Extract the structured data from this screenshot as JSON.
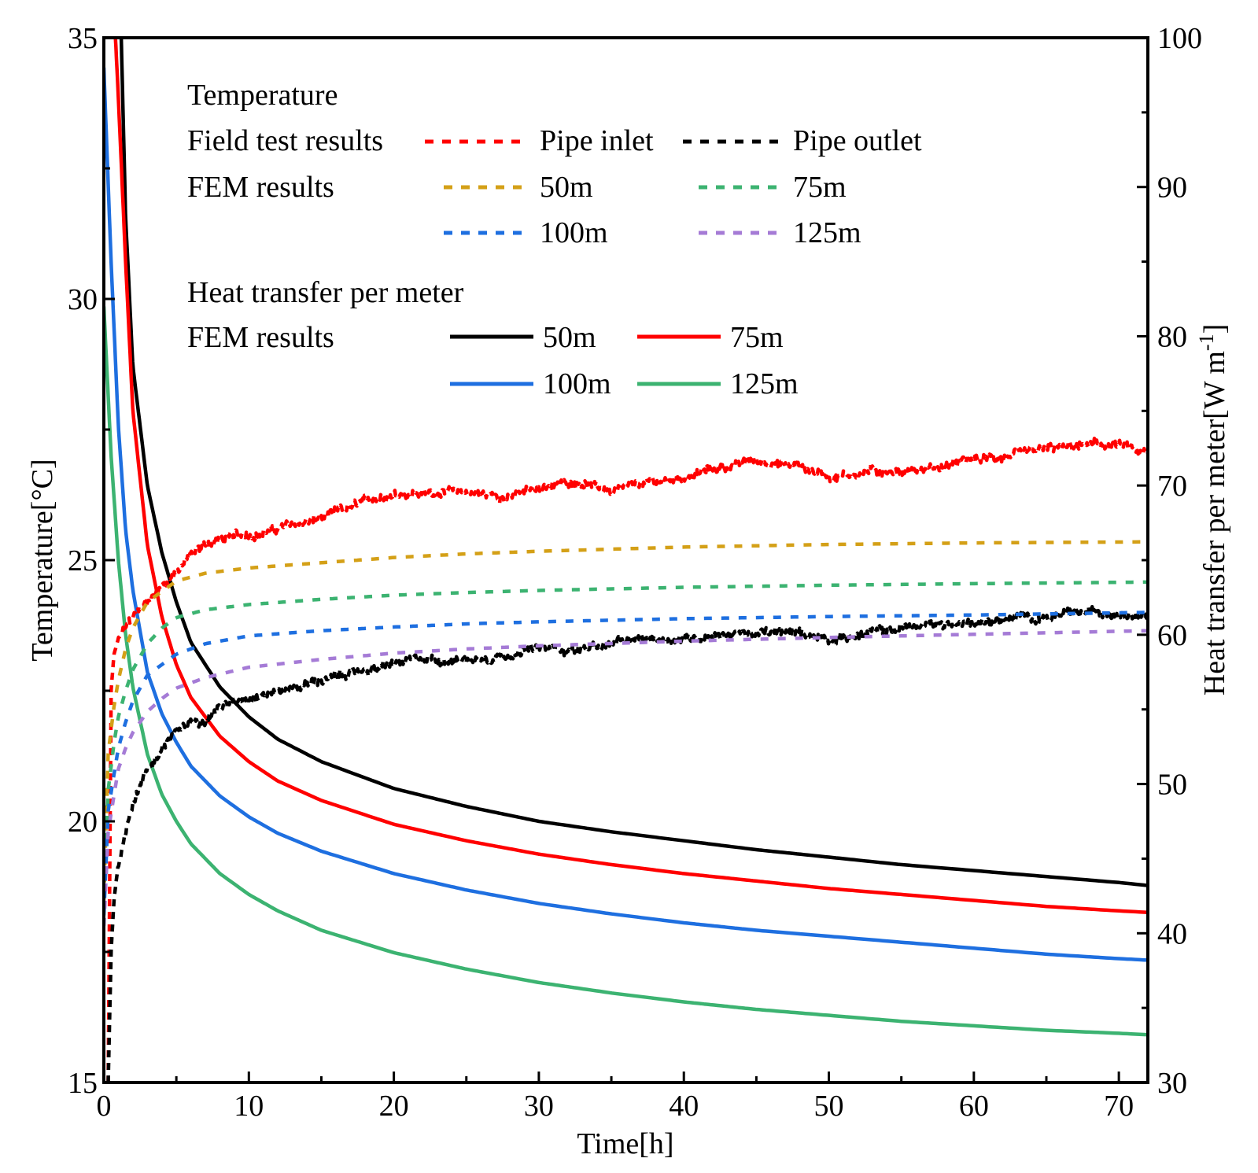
{
  "chart_data": {
    "type": "line",
    "xlabel": "Time[h]",
    "ylabel_left": "Temperature[°C]",
    "ylabel_right_main": "Heat transfer per meter[W m",
    "ylabel_right_sup": "-1",
    "ylabel_right_close": "]",
    "xlim": [
      0,
      72
    ],
    "ylim_left": [
      15,
      35
    ],
    "ylim_right": [
      30,
      100
    ],
    "x_ticks": [
      "0",
      "10",
      "20",
      "30",
      "40",
      "50",
      "60",
      "70"
    ],
    "y_ticks_left": [
      "15",
      "20",
      "25",
      "30",
      "35"
    ],
    "y_ticks_right": [
      "30",
      "40",
      "50",
      "60",
      "70",
      "80",
      "90",
      "100"
    ],
    "legend": {
      "temp_header": "Temperature",
      "field_label": "Field test results",
      "fem_label": "FEM results",
      "heat_header": "Heat transfer per meter",
      "heat_fem_label": "FEM results"
    },
    "temperature_series": [
      {
        "name": "Pipe inlet",
        "group": "field",
        "color": "#ff0000",
        "noisy": true,
        "x": [
          0.3,
          0.5,
          0.7,
          1,
          1.5,
          2,
          3,
          4,
          5,
          6,
          7,
          8,
          10,
          12,
          15,
          18,
          20,
          22,
          25,
          28,
          30,
          33,
          35,
          38,
          40,
          43,
          45,
          48,
          50,
          53,
          55,
          58,
          60,
          63,
          65,
          68,
          70,
          72
        ],
        "y": [
          15.0,
          22.5,
          23.2,
          23.5,
          23.7,
          23.9,
          24.2,
          24.5,
          24.8,
          25.1,
          25.3,
          25.4,
          25.5,
          25.6,
          25.8,
          26.1,
          26.3,
          26.3,
          26.3,
          26.2,
          26.4,
          26.5,
          26.3,
          26.5,
          26.6,
          26.8,
          26.9,
          26.8,
          26.6,
          26.7,
          26.7,
          26.8,
          26.9,
          27.0,
          27.1,
          27.2,
          27.2,
          27.0
        ]
      },
      {
        "name": "Pipe outlet",
        "group": "field",
        "color": "#000000",
        "noisy": true,
        "x": [
          0.3,
          0.5,
          0.7,
          1,
          1.5,
          2,
          3,
          4,
          5,
          6,
          7,
          8,
          10,
          12,
          15,
          18,
          20,
          22,
          25,
          28,
          30,
          33,
          35,
          38,
          40,
          43,
          45,
          48,
          50,
          53,
          55,
          58,
          60,
          63,
          65,
          68,
          70,
          72
        ],
        "y": [
          15.0,
          17.5,
          18.5,
          19.2,
          19.8,
          20.4,
          21.0,
          21.4,
          21.7,
          21.9,
          22.0,
          22.2,
          22.4,
          22.5,
          22.7,
          22.9,
          23.0,
          23.1,
          23.1,
          23.2,
          23.3,
          23.3,
          23.4,
          23.5,
          23.5,
          23.6,
          23.6,
          23.6,
          23.5,
          23.6,
          23.7,
          23.8,
          23.8,
          23.9,
          23.9,
          24.0,
          24.0,
          24.0
        ]
      },
      {
        "name": "50m",
        "group": "fem",
        "color": "#d4a017",
        "x": [
          0,
          0.3,
          0.7,
          1,
          1.5,
          2,
          3,
          4,
          5,
          7,
          10,
          15,
          20,
          25,
          30,
          40,
          50,
          60,
          72
        ],
        "y": [
          18.5,
          21.3,
          22.2,
          22.7,
          23.3,
          23.7,
          24.2,
          24.4,
          24.6,
          24.75,
          24.85,
          24.95,
          25.05,
          25.12,
          25.17,
          25.25,
          25.3,
          25.33,
          25.35
        ]
      },
      {
        "name": "75m",
        "group": "fem",
        "color": "#3cb371",
        "x": [
          0,
          0.3,
          0.7,
          1,
          1.5,
          2,
          3,
          4,
          5,
          7,
          10,
          15,
          20,
          25,
          30,
          40,
          50,
          60,
          72
        ],
        "y": [
          18.3,
          20.6,
          21.5,
          22.0,
          22.5,
          22.9,
          23.4,
          23.7,
          23.9,
          24.05,
          24.15,
          24.25,
          24.33,
          24.38,
          24.42,
          24.48,
          24.52,
          24.55,
          24.58
        ]
      },
      {
        "name": "100m",
        "group": "fem",
        "color": "#1e6fe0",
        "x": [
          0,
          0.3,
          0.7,
          1,
          1.5,
          2,
          3,
          4,
          5,
          7,
          10,
          15,
          20,
          25,
          30,
          40,
          50,
          60,
          72
        ],
        "y": [
          18.2,
          20.2,
          20.9,
          21.4,
          21.9,
          22.3,
          22.8,
          23.0,
          23.2,
          23.4,
          23.55,
          23.65,
          23.72,
          23.78,
          23.82,
          23.88,
          23.92,
          23.95,
          24.0
        ]
      },
      {
        "name": "125m",
        "group": "fem",
        "color": "#a57bd6",
        "x": [
          0,
          0.3,
          0.7,
          1,
          1.5,
          2,
          3,
          4,
          5,
          7,
          10,
          15,
          20,
          25,
          30,
          40,
          50,
          60,
          72
        ],
        "y": [
          18.0,
          19.8,
          20.5,
          21.0,
          21.4,
          21.7,
          22.1,
          22.35,
          22.55,
          22.75,
          22.95,
          23.1,
          23.22,
          23.3,
          23.36,
          23.45,
          23.52,
          23.58,
          23.65
        ]
      }
    ],
    "heat_series": [
      {
        "name": "50m",
        "color": "#000000",
        "x": [
          1.2,
          1.5,
          2,
          3,
          4,
          5,
          6,
          8,
          10,
          12,
          15,
          20,
          25,
          30,
          35,
          40,
          45,
          50,
          55,
          60,
          65,
          70,
          72
        ],
        "y": [
          100,
          88,
          78,
          70,
          65.5,
          62.2,
          59.5,
          56.5,
          54.5,
          53.0,
          51.5,
          49.7,
          48.5,
          47.5,
          46.8,
          46.2,
          45.6,
          45.1,
          44.6,
          44.2,
          43.8,
          43.4,
          43.2
        ]
      },
      {
        "name": "75m",
        "color": "#ff0000",
        "x": [
          0.8,
          1,
          1.5,
          2,
          3,
          4,
          5,
          6,
          8,
          10,
          12,
          15,
          20,
          25,
          30,
          35,
          40,
          45,
          50,
          55,
          60,
          65,
          70,
          72
        ],
        "y": [
          100,
          96,
          85,
          75,
          66,
          61.2,
          58.0,
          55.8,
          53.2,
          51.5,
          50.2,
          48.9,
          47.3,
          46.2,
          45.3,
          44.6,
          44.0,
          43.5,
          43.0,
          42.6,
          42.2,
          41.8,
          41.5,
          41.4
        ]
      },
      {
        "name": "100m",
        "color": "#1e6fe0",
        "x": [
          0,
          0.5,
          1,
          1.5,
          2,
          3,
          4,
          5,
          6,
          8,
          10,
          12,
          15,
          20,
          25,
          30,
          35,
          40,
          45,
          50,
          55,
          60,
          65,
          70,
          72
        ],
        "y": [
          98,
          85,
          74,
          67,
          63,
          57.5,
          54.7,
          52.8,
          51.2,
          49.2,
          47.8,
          46.7,
          45.5,
          44.0,
          42.9,
          42.0,
          41.3,
          40.7,
          40.2,
          39.8,
          39.4,
          39.0,
          38.6,
          38.3,
          38.2
        ]
      },
      {
        "name": "125m",
        "color": "#3cb371",
        "x": [
          0,
          0.5,
          1,
          1.5,
          2,
          3,
          4,
          5,
          6,
          8,
          10,
          12,
          15,
          20,
          25,
          30,
          35,
          40,
          45,
          50,
          55,
          60,
          65,
          70,
          72
        ],
        "y": [
          82,
          72,
          65,
          60,
          56.5,
          52.0,
          49.3,
          47.5,
          46.0,
          44.0,
          42.6,
          41.5,
          40.2,
          38.7,
          37.6,
          36.7,
          36.0,
          35.4,
          34.9,
          34.5,
          34.1,
          33.8,
          33.5,
          33.3,
          33.2
        ]
      }
    ]
  }
}
